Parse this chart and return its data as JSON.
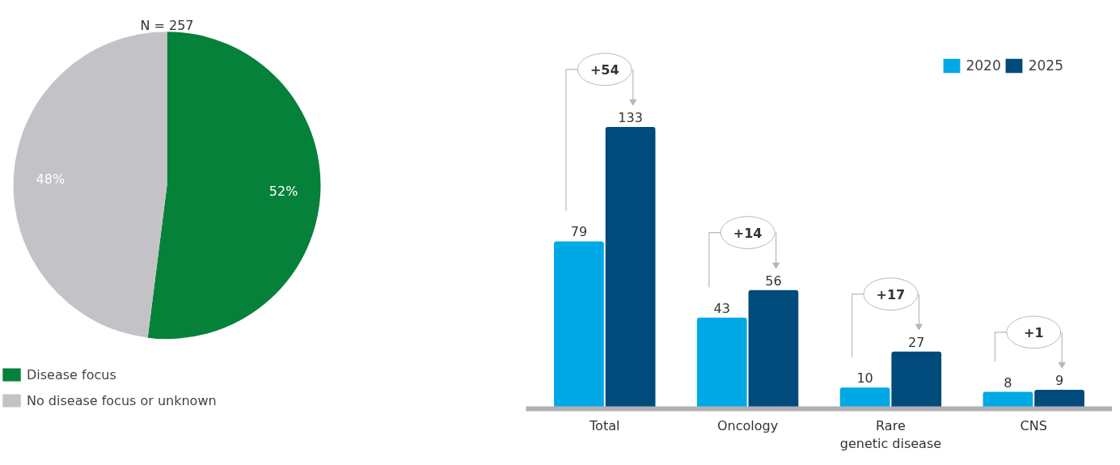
{
  "chart_data": [
    {
      "type": "pie",
      "title": "N = 257",
      "categories": [
        "Disease focus",
        "No disease focus or unknown"
      ],
      "values": [
        52,
        48
      ],
      "colors": [
        "#05813a",
        "#c3c3c7"
      ],
      "value_labels": [
        "52%",
        "48%"
      ],
      "legend": "bottom"
    },
    {
      "type": "bar",
      "categories": [
        "Total",
        "Oncology",
        "Rare genetic disease",
        "CNS"
      ],
      "series": [
        {
          "name": "2020",
          "color": "#00a9e6",
          "values": [
            79,
            43,
            10,
            8
          ]
        },
        {
          "name": "2025",
          "color": "#004a7c",
          "values": [
            133,
            56,
            27,
            9
          ]
        }
      ],
      "data_labels": true,
      "legend": "top right",
      "annotations": [
        "+54",
        "+14",
        "+17",
        "+1"
      ]
    }
  ]
}
